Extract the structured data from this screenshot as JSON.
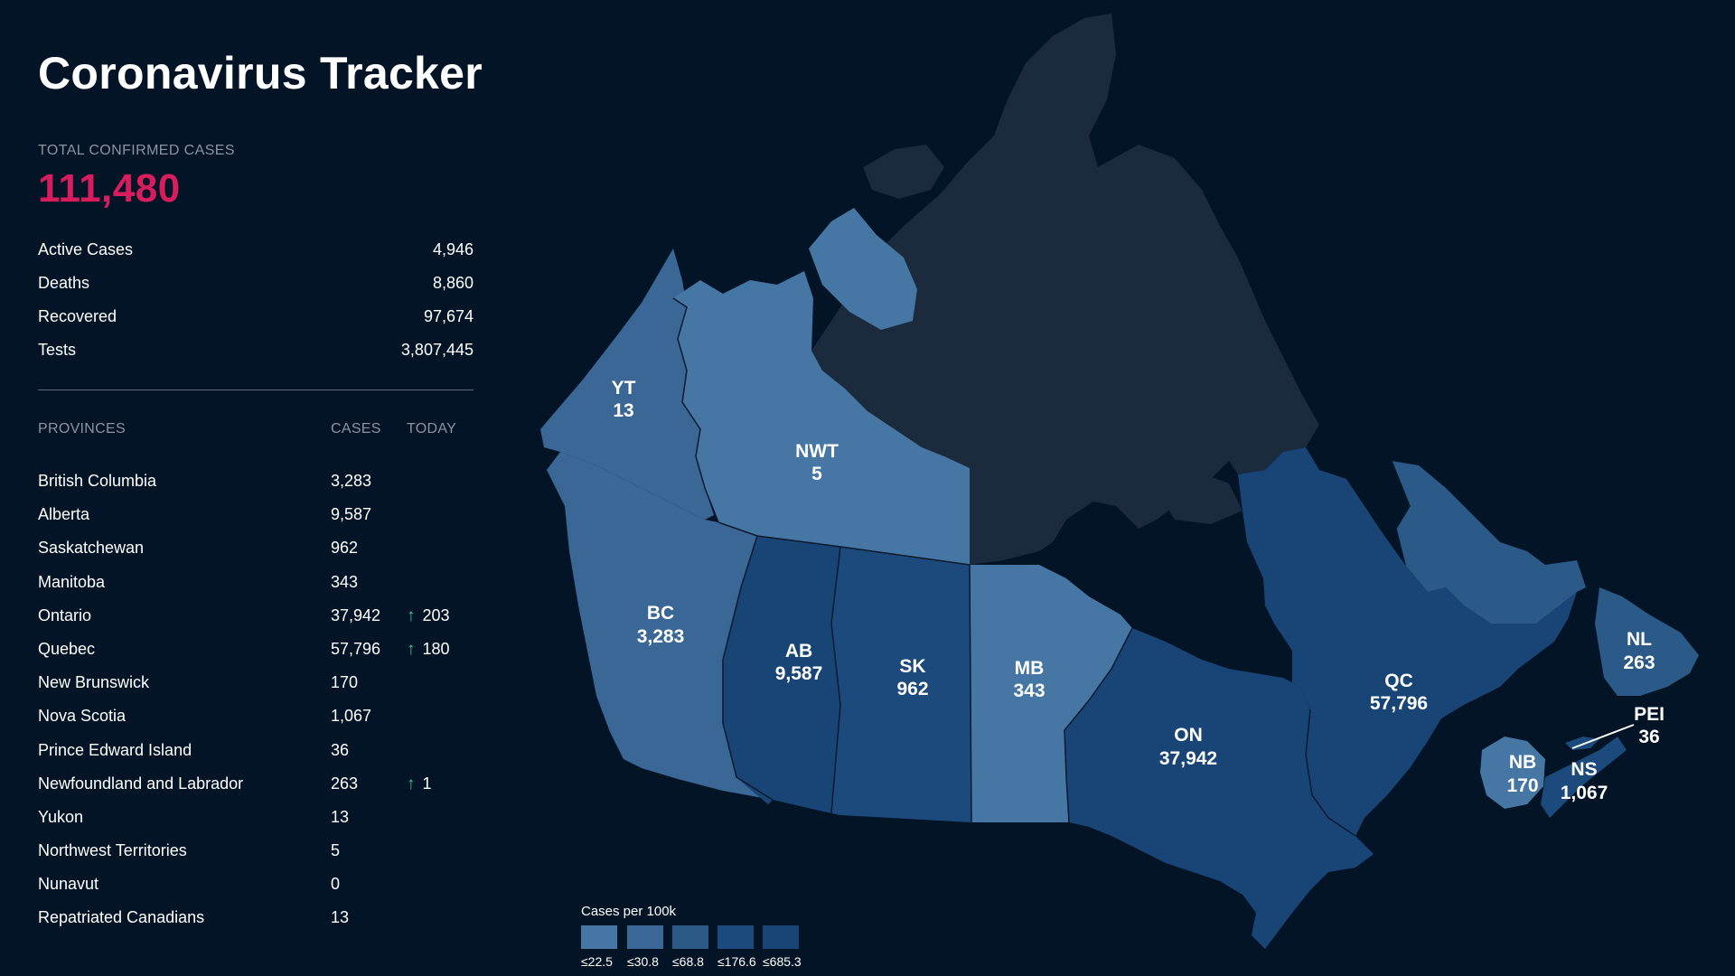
{
  "header": {
    "title": "Coronavirus Tracker"
  },
  "summary": {
    "total_label": "TOTAL CONFIRMED CASES",
    "total_value": "111,480",
    "stats": [
      {
        "label": "Active Cases",
        "value": "4,946"
      },
      {
        "label": "Deaths",
        "value": "8,860"
      },
      {
        "label": "Recovered",
        "value": "97,674"
      },
      {
        "label": "Tests",
        "value": "3,807,445"
      }
    ]
  },
  "provinces_table": {
    "headers": {
      "province": "PROVINCES",
      "cases": "CASES",
      "today": "TODAY"
    },
    "rows": [
      {
        "name": "British Columbia",
        "cases": "3,283",
        "today": ""
      },
      {
        "name": "Alberta",
        "cases": "9,587",
        "today": ""
      },
      {
        "name": "Saskatchewan",
        "cases": "962",
        "today": ""
      },
      {
        "name": "Manitoba",
        "cases": "343",
        "today": ""
      },
      {
        "name": "Ontario",
        "cases": "37,942",
        "today": "203"
      },
      {
        "name": "Quebec",
        "cases": "57,796",
        "today": "180"
      },
      {
        "name": "New Brunswick",
        "cases": "170",
        "today": ""
      },
      {
        "name": "Nova Scotia",
        "cases": "1,067",
        "today": ""
      },
      {
        "name": "Prince Edward Island",
        "cases": "36",
        "today": ""
      },
      {
        "name": "Newfoundland and Labrador",
        "cases": "263",
        "today": "1"
      },
      {
        "name": "Yukon",
        "cases": "13",
        "today": ""
      },
      {
        "name": "Northwest Territories",
        "cases": "5",
        "today": ""
      },
      {
        "name": "Nunavut",
        "cases": "0",
        "today": ""
      },
      {
        "name": "Repatriated Canadians",
        "cases": "13",
        "today": ""
      }
    ]
  },
  "map": {
    "labels": {
      "yt": {
        "abbr": "YT",
        "value": "13"
      },
      "nwt": {
        "abbr": "NWT",
        "value": "5"
      },
      "bc": {
        "abbr": "BC",
        "value": "3,283"
      },
      "ab": {
        "abbr": "AB",
        "value": "9,587"
      },
      "sk": {
        "abbr": "SK",
        "value": "962"
      },
      "mb": {
        "abbr": "MB",
        "value": "343"
      },
      "on": {
        "abbr": "ON",
        "value": "37,942"
      },
      "qc": {
        "abbr": "QC",
        "value": "57,796"
      },
      "nl": {
        "abbr": "NL",
        "value": "263"
      },
      "pei": {
        "abbr": "PEI",
        "value": "36"
      },
      "nb": {
        "abbr": "NB",
        "value": "170"
      },
      "ns": {
        "abbr": "NS",
        "value": "1,067"
      }
    },
    "colors": {
      "background": "#041427",
      "nunavut": "#1b2a3c",
      "tier1": "#4576a4",
      "tier2": "#3a6795",
      "tier3": "#2b5988",
      "tier4": "#1d4a7c",
      "tier5": "#184576",
      "accent_total": "#d81c5e",
      "accent_up": "#38c5a0"
    }
  },
  "legend": {
    "title": "Cases per 100k",
    "items": [
      {
        "label": "≤22.5",
        "color": "#4576a4"
      },
      {
        "label": "≤30.8",
        "color": "#3a6795"
      },
      {
        "label": "≤68.8",
        "color": "#2b5988"
      },
      {
        "label": "≤176.6",
        "color": "#1d4a7c"
      },
      {
        "label": "≤685.3",
        "color": "#184576"
      }
    ]
  }
}
